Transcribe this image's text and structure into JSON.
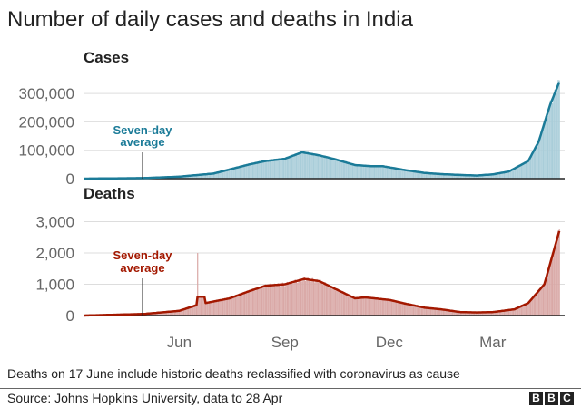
{
  "title": "Number of daily cases and deaths in India",
  "note": "Deaths on 17 June include historic deaths reclassified with coronavirus as cause",
  "source": "Source: Johns Hopkins University, data to 28 Apr",
  "logo": "BBC",
  "colors": {
    "cases_line": "#1b7b98",
    "cases_bar": "#a9cdd9",
    "deaths_line": "#a31800",
    "deaths_bar": "#d9a8a6"
  },
  "chart_data": [
    {
      "type": "bar",
      "title": "Cases",
      "annotation": "Seven-day average",
      "annotation_lines": [
        "Seven-day",
        "average"
      ],
      "y_ticks": [
        "0",
        "100,000",
        "200,000",
        "300,000"
      ],
      "ylim": [
        0,
        350000
      ],
      "x_ticks": [
        "Jun",
        "Sep",
        "Dec",
        "Mar"
      ],
      "grid": true,
      "series": [
        {
          "type": "line",
          "points": [
            [
              "2020-03-10",
              0
            ],
            [
              "2020-05-01",
              2000
            ],
            [
              "2020-06-01",
              7000
            ],
            [
              "2020-07-01",
              18000
            ],
            [
              "2020-08-01",
              50000
            ],
            [
              "2020-08-15",
              62000
            ],
            [
              "2020-09-01",
              70000
            ],
            [
              "2020-09-16",
              93000
            ],
            [
              "2020-10-01",
              82000
            ],
            [
              "2020-10-15",
              68000
            ],
            [
              "2020-11-01",
              48000
            ],
            [
              "2020-11-15",
              44000
            ],
            [
              "2020-11-25",
              44000
            ],
            [
              "2020-12-15",
              30000
            ],
            [
              "2021-01-01",
              20000
            ],
            [
              "2021-01-15",
              16000
            ],
            [
              "2021-02-01",
              13000
            ],
            [
              "2021-02-15",
              11000
            ],
            [
              "2021-03-01",
              15000
            ],
            [
              "2021-03-15",
              25000
            ],
            [
              "2021-04-01",
              62000
            ],
            [
              "2021-04-10",
              130000
            ],
            [
              "2021-04-20",
              260000
            ],
            [
              "2021-04-28",
              340000
            ]
          ]
        }
      ]
    },
    {
      "type": "bar",
      "title": "Deaths",
      "annotation": "Seven-day average",
      "annotation_lines": [
        "Seven-day",
        "average"
      ],
      "y_ticks": [
        "0",
        "1,000",
        "2,000",
        "3,000"
      ],
      "ylim": [
        0,
        3300
      ],
      "x_ticks": [
        "Jun",
        "Sep",
        "Dec",
        "Mar"
      ],
      "grid": true,
      "spike": [
        "2020-06-17",
        2000
      ],
      "series": [
        {
          "type": "line",
          "points": [
            [
              "2020-03-10",
              0
            ],
            [
              "2020-05-01",
              50
            ],
            [
              "2020-06-01",
              150
            ],
            [
              "2020-06-16",
              330
            ],
            [
              "2020-06-17",
              600
            ],
            [
              "2020-06-23",
              600
            ],
            [
              "2020-06-24",
              400
            ],
            [
              "2020-07-15",
              550
            ],
            [
              "2020-08-01",
              780
            ],
            [
              "2020-08-15",
              950
            ],
            [
              "2020-09-01",
              1000
            ],
            [
              "2020-09-18",
              1170
            ],
            [
              "2020-10-01",
              1100
            ],
            [
              "2020-10-15",
              850
            ],
            [
              "2020-11-01",
              550
            ],
            [
              "2020-11-10",
              580
            ],
            [
              "2020-12-01",
              500
            ],
            [
              "2020-12-15",
              380
            ],
            [
              "2021-01-01",
              250
            ],
            [
              "2021-01-15",
              200
            ],
            [
              "2021-02-01",
              110
            ],
            [
              "2021-02-15",
              100
            ],
            [
              "2021-03-01",
              110
            ],
            [
              "2021-03-20",
              200
            ],
            [
              "2021-04-01",
              400
            ],
            [
              "2021-04-15",
              1000
            ],
            [
              "2021-04-28",
              2700
            ]
          ]
        }
      ]
    }
  ]
}
